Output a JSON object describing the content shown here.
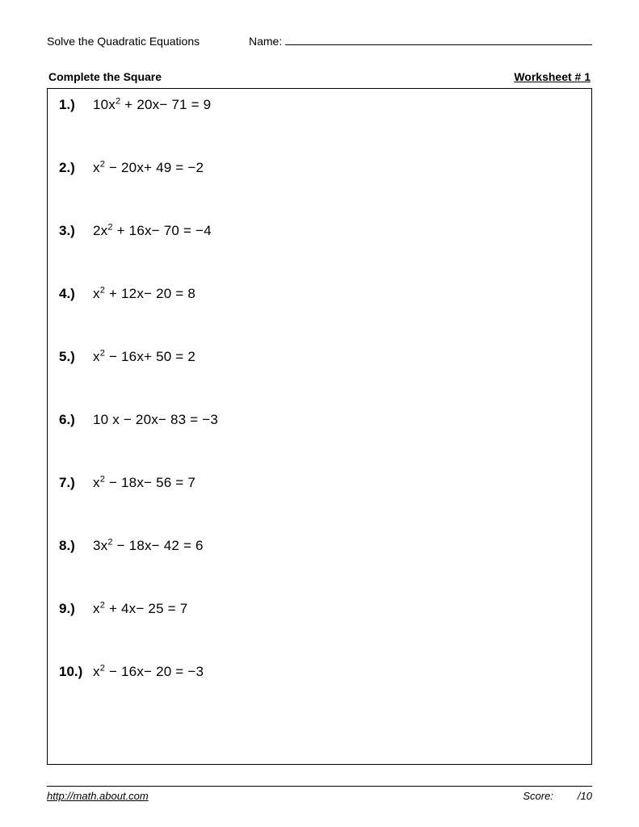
{
  "header": {
    "title": "Solve the Quadratic Equations",
    "name_label": "Name:"
  },
  "subheader": {
    "left": "Complete the Square",
    "right": "Worksheet # 1"
  },
  "problems": [
    {
      "num": "1.)",
      "coef1": "10x",
      "sup1": "2",
      "rest": " + 20x− 71 = 9"
    },
    {
      "num": "2.)",
      "coef1": "x",
      "sup1": "2",
      "rest": " − 20x+ 49 = −2"
    },
    {
      "num": "3.)",
      "coef1": "2x",
      "sup1": "2",
      "rest": " + 16x− 70 = −4"
    },
    {
      "num": "4.)",
      "coef1": "x",
      "sup1": "2",
      "rest": " + 12x− 20 = 8"
    },
    {
      "num": "5.)",
      "coef1": "x",
      "sup1": "2",
      "rest": " − 16x+ 50 = 2"
    },
    {
      "num": "6.)",
      "coef1": "10 x",
      "sup1": "",
      "rest": " − 20x− 83 = −3"
    },
    {
      "num": "7.)",
      "coef1": "x",
      "sup1": "2",
      "rest": " − 18x− 56 = 7"
    },
    {
      "num": "8.)",
      "coef1": "3x",
      "sup1": "2",
      "rest": " − 18x− 42 = 6"
    },
    {
      "num": "9.)",
      "coef1": "x",
      "sup1": "2",
      "rest": " + 4x− 25 = 7"
    },
    {
      "num": "10.)",
      "coef1": "x",
      "sup1": "2",
      "rest": " − 16x− 20 = −3"
    }
  ],
  "footer": {
    "url": "http://math.about.com",
    "score_label": "Score:",
    "score_total": "/10"
  },
  "style": {
    "page_bg": "#ffffff",
    "text_color": "#000000",
    "border_color": "#000000",
    "header_fontsize": 14,
    "problem_fontsize": 17,
    "footer_fontsize": 13,
    "box_border_width": 1.5,
    "problem_spacing": 58
  }
}
